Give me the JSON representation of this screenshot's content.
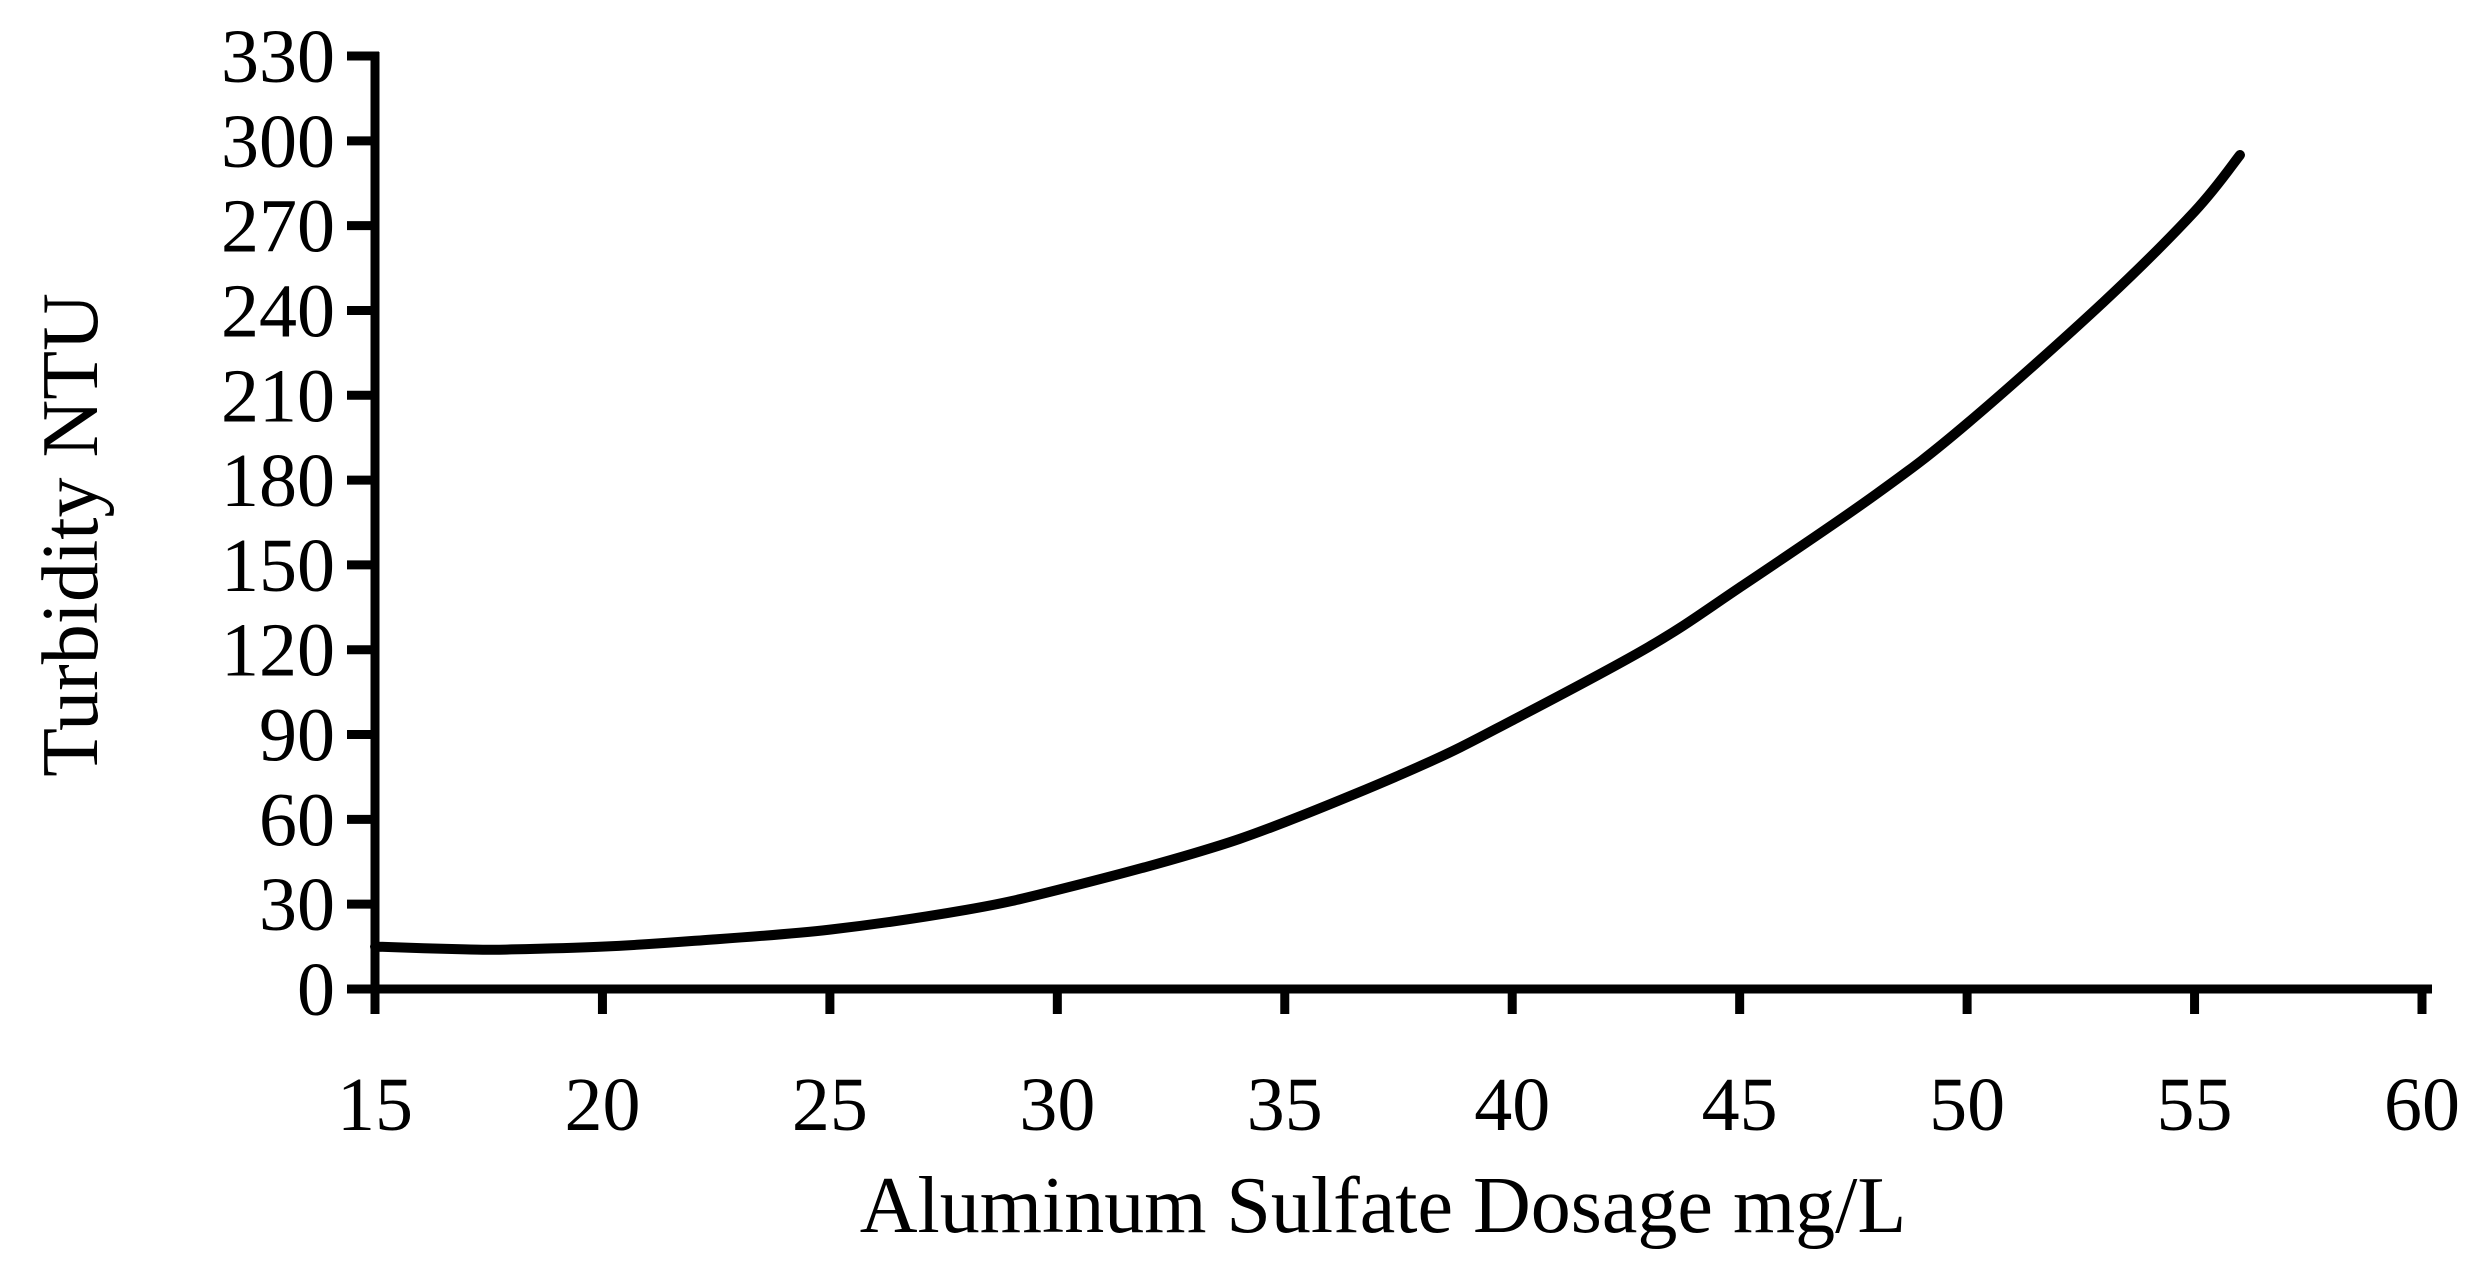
{
  "chart_data": {
    "type": "line",
    "title": "",
    "xlabel": "Aluminum Sulfate Dosage  mg/L",
    "ylabel": "Turbidity  NTU",
    "xlim": [
      15,
      60
    ],
    "ylim": [
      0,
      330
    ],
    "x_ticks": [
      15,
      20,
      25,
      30,
      35,
      40,
      45,
      50,
      55,
      60
    ],
    "y_ticks": [
      0,
      30,
      60,
      90,
      120,
      150,
      180,
      210,
      240,
      270,
      300,
      330
    ],
    "grid": false,
    "legend": "none",
    "series": [
      {
        "color": "#000000",
        "x": [
          15,
          17,
          18,
          20,
          22,
          25,
          28,
          30,
          33,
          35,
          38,
          40,
          43,
          45,
          48,
          50,
          53,
          55,
          56
        ],
        "y": [
          15,
          14,
          14,
          15,
          17,
          21,
          28,
          35,
          48,
          59,
          79,
          95,
          121,
          142,
          175,
          200,
          243,
          275,
          295
        ]
      }
    ]
  }
}
